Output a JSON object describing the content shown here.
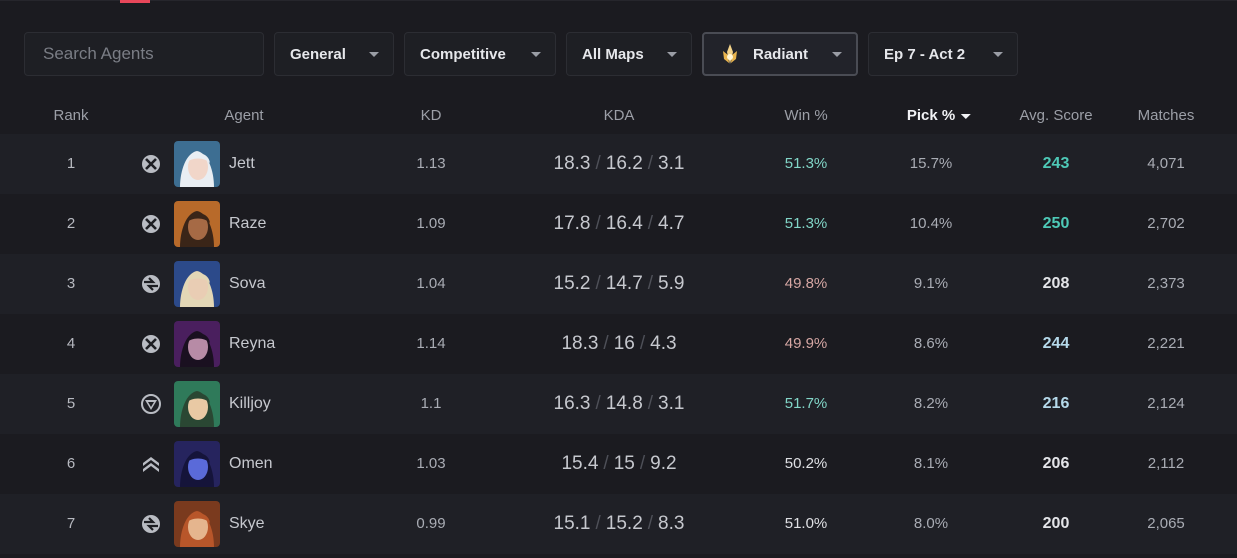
{
  "filters": {
    "search_placeholder": "Search Agents",
    "mode": "General",
    "queue": "Competitive",
    "map": "All Maps",
    "rank": "Radiant",
    "act": "Ep 7 - Act 2"
  },
  "columns": {
    "rank": "Rank",
    "agent": "Agent",
    "kd": "KD",
    "kda": "KDA",
    "win": "Win %",
    "pick": "Pick %",
    "score": "Avg. Score",
    "matches": "Matches"
  },
  "colors": {
    "background": "#1b1b20",
    "row_alt": "#1f2026",
    "win_high": "#82d6c8",
    "win_low": "#d6a7a4",
    "score_high": "#4ec9b7",
    "accent": "#e8475a"
  },
  "rows": [
    {
      "rank": "1",
      "role_icon": "duelist-icon",
      "agent": "Jett",
      "kd": "1.13",
      "k": "18.3",
      "d": "16.2",
      "a": "3.1",
      "win": "51.3%",
      "win_tone": "good",
      "pick": "15.7%",
      "score": "243",
      "score_tone": "hi",
      "matches": "4,071"
    },
    {
      "rank": "2",
      "role_icon": "duelist-icon",
      "agent": "Raze",
      "kd": "1.09",
      "k": "17.8",
      "d": "16.4",
      "a": "4.7",
      "win": "51.3%",
      "win_tone": "good",
      "pick": "10.4%",
      "score": "250",
      "score_tone": "hi",
      "matches": "2,702"
    },
    {
      "rank": "3",
      "role_icon": "initiator-icon",
      "agent": "Sova",
      "kd": "1.04",
      "k": "15.2",
      "d": "14.7",
      "a": "5.9",
      "win": "49.8%",
      "win_tone": "bad",
      "pick": "9.1%",
      "score": "208",
      "score_tone": "plain",
      "matches": "2,373"
    },
    {
      "rank": "4",
      "role_icon": "duelist-icon",
      "agent": "Reyna",
      "kd": "1.14",
      "k": "18.3",
      "d": "16",
      "a": "4.3",
      "win": "49.9%",
      "win_tone": "bad",
      "pick": "8.6%",
      "score": "244",
      "score_tone": "mid",
      "matches": "2,221"
    },
    {
      "rank": "5",
      "role_icon": "sentinel-icon",
      "agent": "Killjoy",
      "kd": "1.1",
      "k": "16.3",
      "d": "14.8",
      "a": "3.1",
      "win": "51.7%",
      "win_tone": "good",
      "pick": "8.2%",
      "score": "216",
      "score_tone": "mid",
      "matches": "2,124"
    },
    {
      "rank": "6",
      "role_icon": "controller-icon",
      "agent": "Omen",
      "kd": "1.03",
      "k": "15.4",
      "d": "15",
      "a": "9.2",
      "win": "50.2%",
      "win_tone": "neutral",
      "pick": "8.1%",
      "score": "206",
      "score_tone": "plain",
      "matches": "2,112"
    },
    {
      "rank": "7",
      "role_icon": "initiator-icon",
      "agent": "Skye",
      "kd": "0.99",
      "k": "15.1",
      "d": "15.2",
      "a": "8.3",
      "win": "51.0%",
      "win_tone": "neutral",
      "pick": "8.0%",
      "score": "200",
      "score_tone": "plain",
      "matches": "2,065"
    }
  ]
}
